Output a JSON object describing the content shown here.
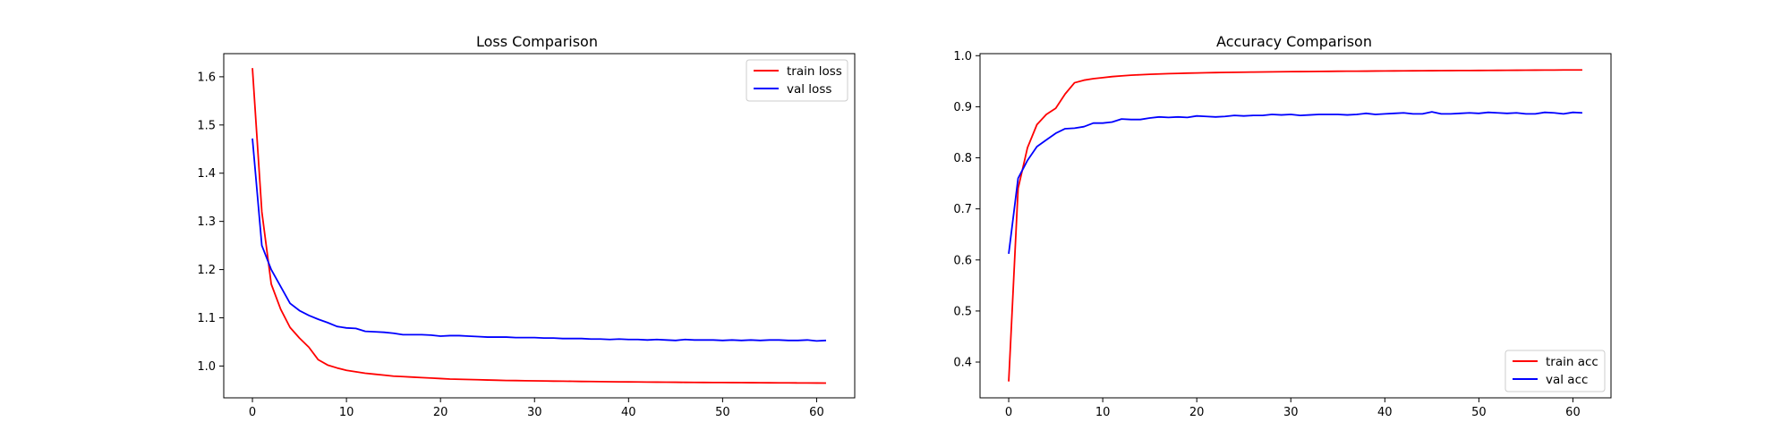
{
  "chart_data": [
    {
      "type": "line",
      "title": "Loss Comparison",
      "xlabel": "",
      "ylabel": "",
      "xlim": [
        -3.05,
        64.05
      ],
      "ylim": [
        0.934,
        1.648
      ],
      "xticks": [
        0,
        10,
        20,
        30,
        40,
        50,
        60
      ],
      "yticks": [
        1.0,
        1.1,
        1.2,
        1.3,
        1.4,
        1.5,
        1.6
      ],
      "ytick_labels": [
        "1.0",
        "1.1",
        "1.2",
        "1.3",
        "1.4",
        "1.5",
        "1.6"
      ],
      "grid": false,
      "legend_position": "upper right",
      "series": [
        {
          "name": "train loss",
          "color": "#ff0000",
          "values": [
            1.618,
            1.32,
            1.17,
            1.118,
            1.08,
            1.058,
            1.039,
            1.013,
            1.002,
            0.996,
            0.991,
            0.988,
            0.985,
            0.983,
            0.981,
            0.979,
            0.978,
            0.977,
            0.976,
            0.975,
            0.974,
            0.973,
            0.9725,
            0.972,
            0.9715,
            0.971,
            0.9705,
            0.97,
            0.9698,
            0.9695,
            0.9692,
            0.969,
            0.9687,
            0.9685,
            0.9683,
            0.968,
            0.9678,
            0.9676,
            0.9674,
            0.9672,
            0.967,
            0.9669,
            0.9667,
            0.9666,
            0.9664,
            0.9663,
            0.9661,
            0.966,
            0.9659,
            0.9658,
            0.9657,
            0.9656,
            0.9655,
            0.9654,
            0.9653,
            0.9652,
            0.9651,
            0.965,
            0.9649,
            0.9648,
            0.9647,
            0.9646
          ]
        },
        {
          "name": "val loss",
          "color": "#0000ff",
          "values": [
            1.472,
            1.25,
            1.2,
            1.165,
            1.13,
            1.115,
            1.105,
            1.097,
            1.09,
            1.082,
            1.079,
            1.078,
            1.072,
            1.071,
            1.07,
            1.068,
            1.065,
            1.065,
            1.065,
            1.064,
            1.062,
            1.063,
            1.063,
            1.062,
            1.061,
            1.06,
            1.06,
            1.06,
            1.059,
            1.059,
            1.059,
            1.058,
            1.058,
            1.057,
            1.057,
            1.057,
            1.056,
            1.056,
            1.055,
            1.056,
            1.055,
            1.055,
            1.054,
            1.055,
            1.054,
            1.053,
            1.055,
            1.054,
            1.054,
            1.054,
            1.053,
            1.054,
            1.053,
            1.054,
            1.053,
            1.054,
            1.054,
            1.053,
            1.053,
            1.054,
            1.052,
            1.053
          ]
        }
      ]
    },
    {
      "type": "line",
      "title": "Accuracy Comparison",
      "xlabel": "",
      "ylabel": "",
      "xlim": [
        -3.05,
        64.05
      ],
      "ylim": [
        0.33,
        1.004
      ],
      "xticks": [
        0,
        10,
        20,
        30,
        40,
        50,
        60
      ],
      "yticks": [
        0.4,
        0.5,
        0.6,
        0.7,
        0.8,
        0.9,
        1.0
      ],
      "ytick_labels": [
        "0.4",
        "0.5",
        "0.6",
        "0.7",
        "0.8",
        "0.9",
        "1.0"
      ],
      "grid": false,
      "legend_position": "lower right",
      "series": [
        {
          "name": "train acc",
          "color": "#ff0000",
          "values": [
            0.362,
            0.74,
            0.82,
            0.865,
            0.885,
            0.897,
            0.925,
            0.947,
            0.952,
            0.955,
            0.957,
            0.959,
            0.9605,
            0.9617,
            0.9627,
            0.9635,
            0.9642,
            0.9648,
            0.9653,
            0.9658,
            0.9662,
            0.9666,
            0.9669,
            0.9672,
            0.9675,
            0.9677,
            0.9679,
            0.9681,
            0.9683,
            0.9685,
            0.9687,
            0.9689,
            0.969,
            0.9692,
            0.9693,
            0.9695,
            0.9696,
            0.9697,
            0.9698,
            0.97,
            0.9701,
            0.9702,
            0.9703,
            0.9704,
            0.9705,
            0.9706,
            0.9707,
            0.9708,
            0.9709,
            0.971,
            0.9711,
            0.9712,
            0.9713,
            0.9714,
            0.9715,
            0.9716,
            0.9717,
            0.9718,
            0.9719,
            0.972,
            0.972,
            0.9721
          ]
        },
        {
          "name": "val acc",
          "color": "#0000ff",
          "values": [
            0.612,
            0.76,
            0.795,
            0.822,
            0.835,
            0.848,
            0.857,
            0.858,
            0.861,
            0.868,
            0.868,
            0.87,
            0.876,
            0.875,
            0.875,
            0.878,
            0.88,
            0.879,
            0.88,
            0.879,
            0.882,
            0.881,
            0.88,
            0.881,
            0.883,
            0.882,
            0.883,
            0.883,
            0.885,
            0.884,
            0.885,
            0.883,
            0.884,
            0.885,
            0.885,
            0.885,
            0.884,
            0.885,
            0.887,
            0.885,
            0.886,
            0.887,
            0.888,
            0.886,
            0.886,
            0.89,
            0.886,
            0.886,
            0.887,
            0.888,
            0.887,
            0.889,
            0.888,
            0.887,
            0.888,
            0.886,
            0.886,
            0.889,
            0.888,
            0.886,
            0.889,
            0.888
          ]
        }
      ]
    }
  ]
}
